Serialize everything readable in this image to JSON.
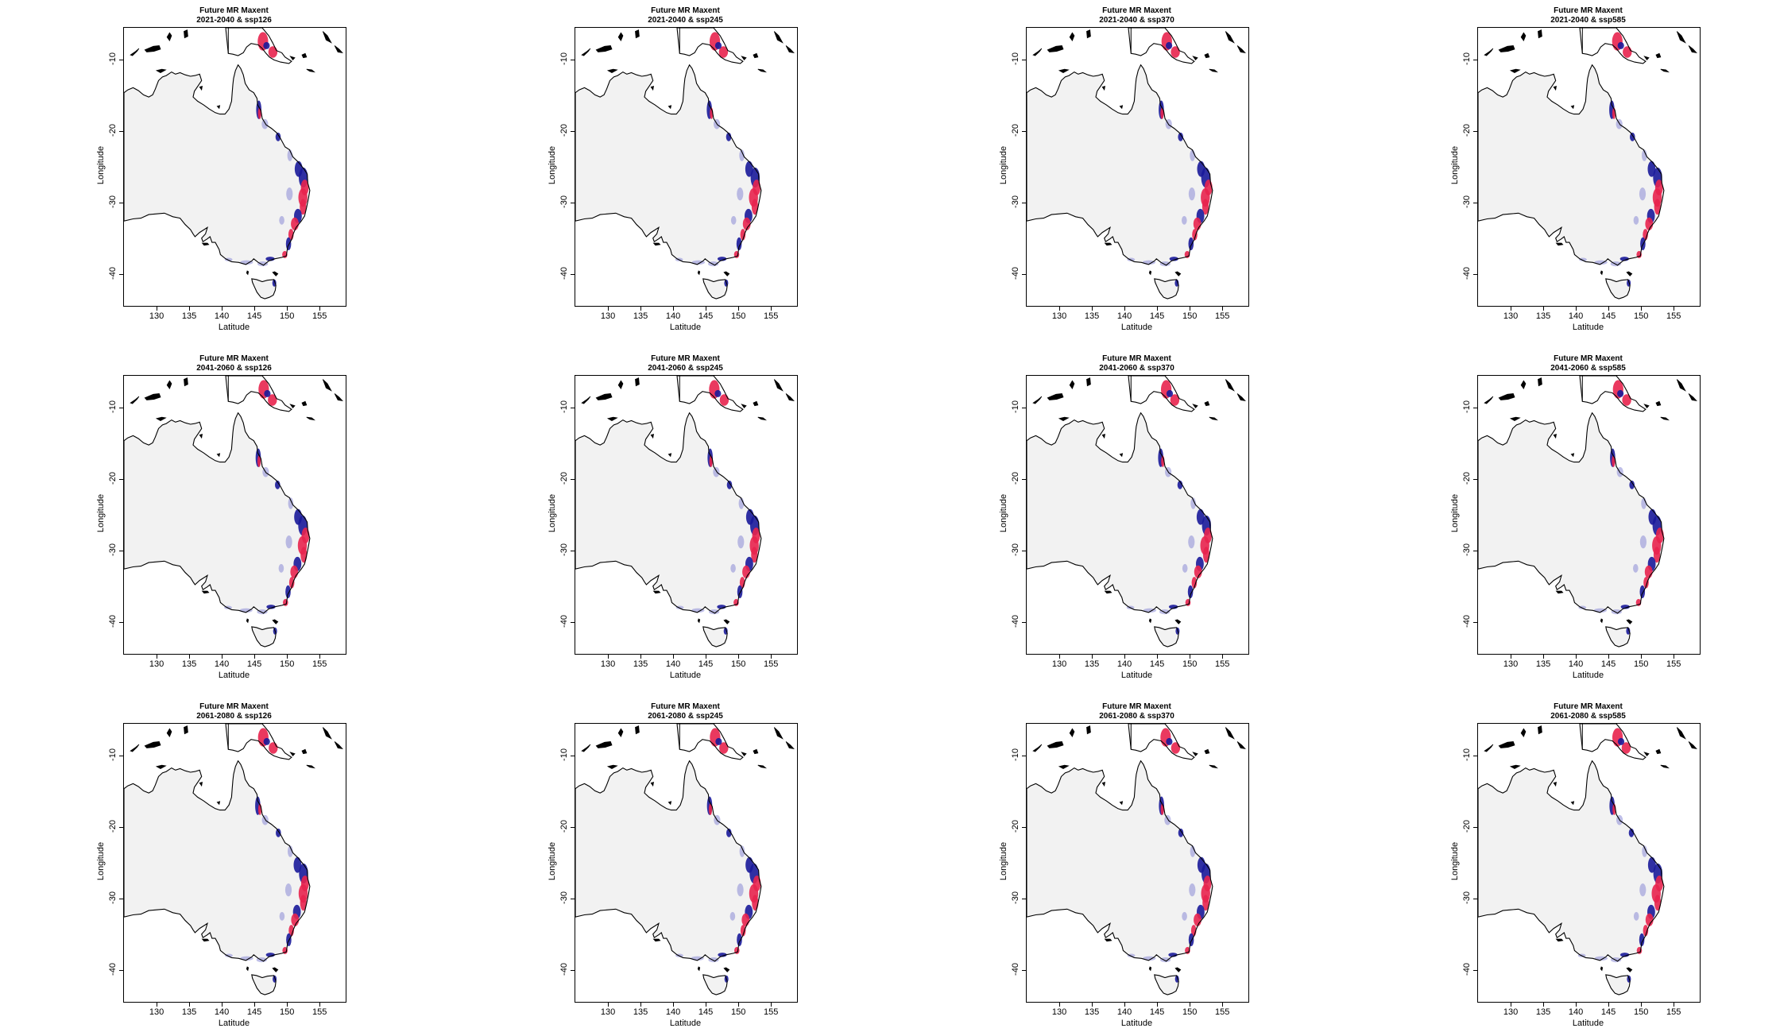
{
  "figure": {
    "x_axis_label": "Latitude",
    "y_axis_label": "Longitude",
    "x_ticks": [
      "130",
      "135",
      "140",
      "145",
      "150",
      "155"
    ],
    "y_ticks": [
      "-10",
      "-20",
      "-30",
      "-40"
    ],
    "x_range": [
      125,
      159
    ],
    "y_range": [
      -44.5,
      -5.5
    ],
    "land_color": "#f2f2f2",
    "coast_color": "#000000",
    "suitability_colors": {
      "low": "#8a8ad6",
      "mid": "#1a1a9a",
      "high": "#e8234e"
    },
    "rows": [
      {
        "period": "2021-2040"
      },
      {
        "period": "2041-2060"
      },
      {
        "period": "2061-2080"
      }
    ],
    "columns": [
      {
        "scenario": "ssp126"
      },
      {
        "scenario": "ssp245"
      },
      {
        "scenario": "ssp370"
      },
      {
        "scenario": "ssp585"
      }
    ],
    "panels": [
      {
        "title": "Future MR Maxent",
        "subtitle": "2021-2040 & ssp126"
      },
      {
        "title": "Future MR Maxent",
        "subtitle": "2021-2040 & ssp245"
      },
      {
        "title": "Future MR Maxent",
        "subtitle": "2021-2040 & ssp370"
      },
      {
        "title": "Future MR Maxent",
        "subtitle": "2021-2040 & ssp585"
      },
      {
        "title": "Future MR Maxent",
        "subtitle": "2041-2060 & ssp126"
      },
      {
        "title": "Future MR Maxent",
        "subtitle": "2041-2060 & ssp245"
      },
      {
        "title": "Future MR Maxent",
        "subtitle": "2041-2060 & ssp370"
      },
      {
        "title": "Future MR Maxent",
        "subtitle": "2041-2060 & ssp585"
      },
      {
        "title": "Future MR Maxent",
        "subtitle": "2061-2080 & ssp126"
      },
      {
        "title": "Future MR Maxent",
        "subtitle": "2061-2080 & ssp245"
      },
      {
        "title": "Future MR Maxent",
        "subtitle": "2061-2080 & ssp370"
      },
      {
        "title": "Future MR Maxent",
        "subtitle": "2061-2080 & ssp585"
      }
    ]
  }
}
